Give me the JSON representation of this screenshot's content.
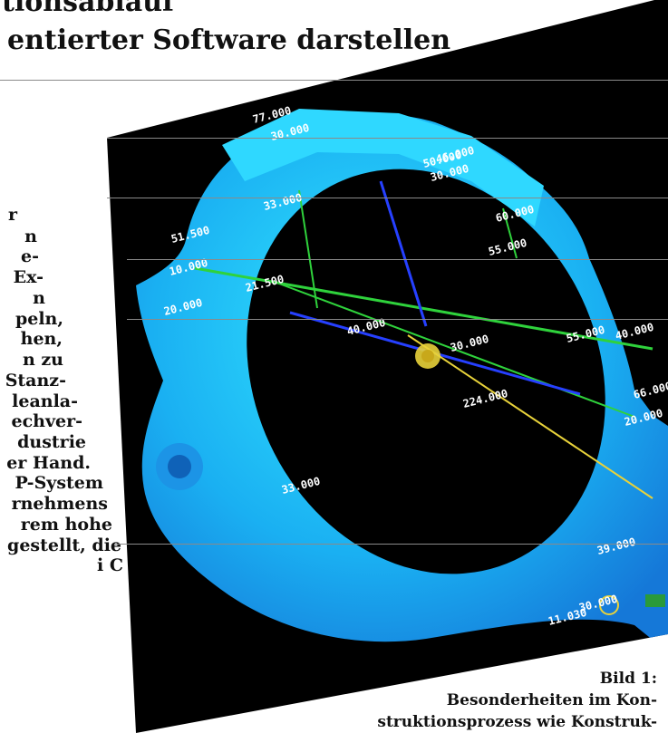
{
  "heading": {
    "line1": "tionsabiauf",
    "line2": "entierter Software darstellen"
  },
  "body_text": [
    "r",
    "n",
    "e-",
    "Ex-",
    "n",
    "peln,",
    "hen,",
    "n zu",
    "Stanz-",
    "leanla-",
    "echver-",
    "dustrie",
    "er Hand.",
    "P-System",
    "rnehmens",
    "rem hohe",
    "gestellt, die",
    "i  C"
  ],
  "figure": {
    "dimensions": [
      "77.000",
      "30.000",
      "50.000",
      "33.000",
      "30.000",
      "21.500",
      "10.000",
      "20.000",
      "51.500",
      "40.000",
      "30.000",
      "55.000",
      "40.000",
      "224.000",
      "60.000",
      "55.000",
      "33.000",
      "20.000",
      "39.000",
      "11.030",
      "46.000",
      "30.000",
      "66.000"
    ],
    "colors": {
      "background": "#000000",
      "part": "#18a8f0",
      "part_highlight": "#2fe2ff",
      "axis_green": "#2fd23c",
      "axis_blue": "#2640ff",
      "axis_yellow": "#e8d23a"
    }
  },
  "caption": {
    "label": "Bild 1:",
    "line1": "Besonderheiten im Kon-",
    "line2": "struktionsprozess wie Konstruk-"
  }
}
